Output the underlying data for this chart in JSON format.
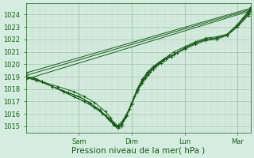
{
  "bg_color": "#d4ede0",
  "grid_color_major": "#a8c8b0",
  "grid_color_minor": "#bcd8c4",
  "line_color": "#1a5c1a",
  "marker_color": "#1a5c1a",
  "ylabel_ticks": [
    1015,
    1016,
    1017,
    1018,
    1019,
    1020,
    1021,
    1022,
    1023,
    1024
  ],
  "ymin": 1014.5,
  "ymax": 1024.9,
  "xlabel": "Pression niveau de la mer( hPa )",
  "xtick_labels": [
    "Sam",
    "Dim",
    "Lun",
    "Mar"
  ],
  "xtick_positions": [
    1,
    2,
    3,
    4
  ],
  "xmin": 0.0,
  "xmax": 4.25,
  "font_size_ticks": 6.0,
  "font_size_xlabel": 7.5,
  "series": [
    [
      0.0,
      1019.3,
      4.25,
      1024.5
    ],
    [
      0.0,
      1018.8,
      4.25,
      1024.3
    ],
    [
      0.0,
      1019.1,
      4.25,
      1024.4
    ],
    [
      0.0,
      1018.9,
      0.3,
      1018.6,
      0.6,
      1018.2,
      0.9,
      1017.8,
      1.1,
      1017.4,
      1.3,
      1016.9,
      1.5,
      1016.2,
      1.6,
      1015.7,
      1.65,
      1015.3,
      1.7,
      1015.05,
      1.75,
      1015.0,
      1.8,
      1015.2,
      1.9,
      1015.9,
      2.0,
      1016.8,
      2.1,
      1017.8,
      2.2,
      1018.5,
      2.3,
      1019.1,
      2.4,
      1019.6,
      2.5,
      1020.0,
      2.6,
      1020.4,
      2.7,
      1020.7,
      2.8,
      1021.0,
      3.0,
      1021.4,
      3.2,
      1021.8,
      3.4,
      1022.1,
      3.6,
      1022.2,
      3.8,
      1022.4,
      4.0,
      1023.1,
      4.1,
      1023.7,
      4.2,
      1024.2,
      4.25,
      1024.5
    ],
    [
      0.0,
      1019.0,
      0.2,
      1018.7,
      0.5,
      1018.2,
      0.8,
      1017.7,
      1.0,
      1017.4,
      1.2,
      1016.9,
      1.4,
      1016.3,
      1.55,
      1015.7,
      1.65,
      1015.25,
      1.7,
      1015.0,
      1.75,
      1014.85,
      1.8,
      1015.0,
      1.9,
      1015.8,
      2.0,
      1016.9,
      2.1,
      1018.0,
      2.2,
      1018.8,
      2.3,
      1019.4,
      2.4,
      1019.8,
      2.5,
      1020.1,
      2.6,
      1020.4,
      2.8,
      1020.8,
      3.0,
      1021.3,
      3.2,
      1021.7,
      3.4,
      1022.0,
      3.6,
      1022.1,
      3.8,
      1022.4,
      4.0,
      1023.2,
      4.2,
      1024.2,
      4.25,
      1024.6
    ],
    [
      0.0,
      1019.0,
      0.2,
      1018.8,
      0.5,
      1018.2,
      0.8,
      1017.7,
      1.0,
      1017.4,
      1.2,
      1016.9,
      1.4,
      1016.3,
      1.55,
      1015.6,
      1.65,
      1015.2,
      1.7,
      1015.05,
      1.75,
      1015.0,
      1.8,
      1015.15,
      1.9,
      1015.9,
      2.0,
      1016.9,
      2.1,
      1017.9,
      2.2,
      1018.7,
      2.3,
      1019.3,
      2.4,
      1019.7,
      2.5,
      1020.1,
      2.6,
      1020.4,
      2.8,
      1020.8,
      3.0,
      1021.3,
      3.2,
      1021.7,
      3.4,
      1022.0,
      3.6,
      1022.1,
      3.8,
      1022.4,
      4.0,
      1023.1,
      4.2,
      1024.1,
      4.25,
      1024.5
    ],
    [
      0.0,
      1019.0,
      0.15,
      1018.85,
      0.3,
      1018.6,
      0.5,
      1018.2,
      0.7,
      1017.8,
      0.9,
      1017.4,
      1.1,
      1017.0,
      1.3,
      1016.5,
      1.5,
      1015.9,
      1.6,
      1015.45,
      1.65,
      1015.15,
      1.7,
      1015.05,
      1.75,
      1015.1,
      1.85,
      1015.6,
      1.95,
      1016.4,
      2.05,
      1017.4,
      2.15,
      1018.3,
      2.25,
      1018.9,
      2.35,
      1019.4,
      2.45,
      1019.8,
      2.55,
      1020.1,
      2.65,
      1020.4,
      2.75,
      1020.6,
      2.85,
      1020.9,
      3.0,
      1021.3,
      3.2,
      1021.7,
      3.4,
      1022.0,
      3.6,
      1022.1,
      3.8,
      1022.4,
      4.0,
      1023.1,
      4.2,
      1024.0,
      4.25,
      1024.4
    ],
    [
      0.0,
      1019.0,
      0.15,
      1018.85,
      0.3,
      1018.6,
      0.5,
      1018.2,
      0.7,
      1017.8,
      0.9,
      1017.4,
      1.1,
      1017.0,
      1.3,
      1016.5,
      1.45,
      1016.0,
      1.6,
      1015.5,
      1.7,
      1015.1,
      1.75,
      1015.0,
      1.8,
      1015.15,
      1.9,
      1015.8,
      2.0,
      1016.8,
      2.1,
      1017.8,
      2.2,
      1018.6,
      2.3,
      1019.2,
      2.4,
      1019.7,
      2.5,
      1020.0,
      2.6,
      1020.3,
      2.8,
      1020.8,
      3.0,
      1021.2,
      3.2,
      1021.6,
      3.4,
      1021.9,
      3.6,
      1022.0,
      3.8,
      1022.3,
      4.0,
      1023.0,
      4.2,
      1023.9,
      4.25,
      1024.3
    ]
  ]
}
